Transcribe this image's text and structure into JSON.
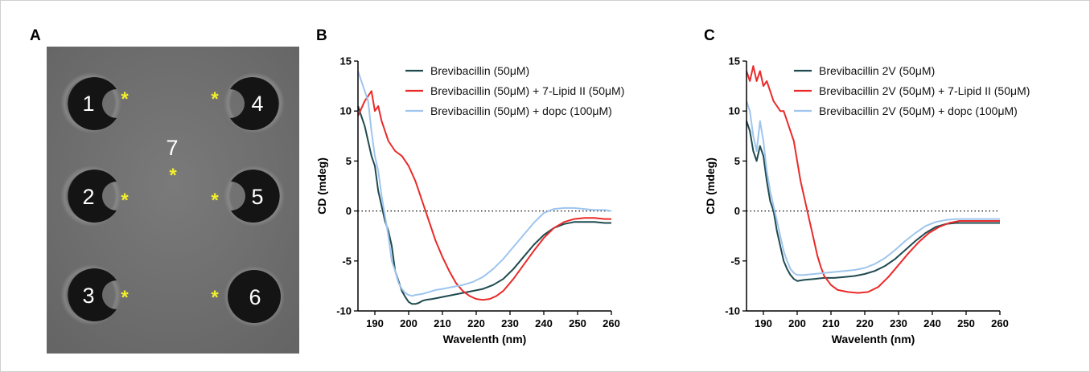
{
  "panels": {
    "a": {
      "label": "A"
    },
    "b": {
      "label": "B"
    },
    "c": {
      "label": "C"
    }
  },
  "plate": {
    "wells": [
      {
        "label": "1",
        "shape": "notch-right"
      },
      {
        "label": "2",
        "shape": "notch-right"
      },
      {
        "label": "3",
        "shape": "notch-right"
      },
      {
        "label": "4",
        "shape": "notch-left"
      },
      {
        "label": "5",
        "shape": "notch-left"
      },
      {
        "label": "6",
        "shape": "round"
      }
    ],
    "center_label": "7",
    "marker": "*",
    "colors": {
      "background": "#6f6f6f",
      "well": "#141414",
      "marker": "#f2ef2a",
      "text": "#ffffff"
    }
  },
  "chart_data": [
    {
      "panel": "B",
      "type": "line",
      "xlabel": "Wavelenth (nm)",
      "ylabel": "CD (mdeg)",
      "xlim": [
        185,
        260
      ],
      "ylim": [
        -10,
        15
      ],
      "xticks": [
        190,
        200,
        210,
        220,
        230,
        240,
        250,
        260
      ],
      "yticks": [
        -10,
        -5,
        0,
        5,
        10,
        15
      ],
      "zero_line": "dotted",
      "legend_position": "top-right",
      "series": [
        {
          "name": "Brevibacillin (50μM)",
          "color": "#1f4a4f",
          "x": [
            185,
            187,
            189,
            190,
            191,
            192,
            193,
            194,
            195,
            196,
            197,
            198,
            199,
            200,
            201,
            202,
            203,
            204,
            205,
            207,
            210,
            213,
            216,
            219,
            222,
            225,
            228,
            231,
            234,
            237,
            240,
            243,
            246,
            249,
            252,
            255,
            258,
            260
          ],
          "y": [
            10.5,
            8.5,
            5.5,
            4.5,
            2,
            0.5,
            -1,
            -2,
            -3.5,
            -6,
            -7,
            -8,
            -8.6,
            -9.1,
            -9.3,
            -9.3,
            -9.2,
            -9.0,
            -8.9,
            -8.8,
            -8.6,
            -8.4,
            -8.2,
            -8.0,
            -7.8,
            -7.4,
            -6.8,
            -5.8,
            -4.6,
            -3.4,
            -2.4,
            -1.7,
            -1.3,
            -1.1,
            -1.1,
            -1.1,
            -1.2,
            -1.2
          ]
        },
        {
          "name": "Brevibacillin (50μM) + 7-Lipid II (50μM)",
          "color": "#ea2a2a",
          "x": [
            185,
            187,
            189,
            190,
            191,
            192,
            194,
            196,
            198,
            200,
            202,
            203,
            204,
            205,
            206,
            208,
            210,
            212,
            214,
            216,
            218,
            220,
            222,
            224,
            226,
            228,
            231,
            234,
            237,
            240,
            243,
            246,
            249,
            252,
            255,
            258,
            260
          ],
          "y": [
            9.5,
            11,
            12,
            10,
            10.5,
            9,
            7,
            6,
            5.5,
            4.5,
            3,
            2,
            1,
            0,
            -1,
            -3,
            -4.6,
            -6,
            -7.2,
            -8.0,
            -8.5,
            -8.8,
            -8.9,
            -8.8,
            -8.5,
            -8.0,
            -6.8,
            -5.4,
            -4.0,
            -2.7,
            -1.7,
            -1.1,
            -0.8,
            -0.7,
            -0.7,
            -0.8,
            -0.8
          ]
        },
        {
          "name": "Brevibacillin (50μM) + dopc (100μM)",
          "color": "#9ec5ee",
          "x": [
            185,
            187,
            188,
            189,
            190,
            191,
            192,
            193,
            194,
            195,
            196,
            197,
            198,
            199,
            200,
            201,
            202,
            204,
            206,
            208,
            210,
            213,
            216,
            219,
            222,
            225,
            228,
            231,
            234,
            237,
            240,
            243,
            246,
            249,
            252,
            255,
            258,
            260
          ],
          "y": [
            14,
            12,
            11,
            8,
            5.5,
            4,
            1.5,
            -0.5,
            -2.5,
            -5,
            -6,
            -7.2,
            -7.8,
            -8.2,
            -8.4,
            -8.5,
            -8.4,
            -8.3,
            -8.1,
            -7.9,
            -7.8,
            -7.6,
            -7.4,
            -7.1,
            -6.6,
            -5.8,
            -4.8,
            -3.6,
            -2.4,
            -1.2,
            -0.2,
            0.2,
            0.3,
            0.3,
            0.2,
            0.1,
            0.1,
            0.0
          ]
        }
      ]
    },
    {
      "panel": "C",
      "type": "line",
      "xlabel": "Wavelenth (nm)",
      "ylabel": "CD (mdeg)",
      "xlim": [
        185,
        260
      ],
      "ylim": [
        -10,
        15
      ],
      "xticks": [
        190,
        200,
        210,
        220,
        230,
        240,
        250,
        260
      ],
      "yticks": [
        -10,
        -5,
        0,
        5,
        10,
        15
      ],
      "zero_line": "dotted",
      "legend_position": "top-right",
      "series": [
        {
          "name": "Brevibacillin 2V (50μM)",
          "color": "#1f4a4f",
          "x": [
            185,
            186,
            187,
            188,
            189,
            190,
            191,
            192,
            193,
            194,
            195,
            196,
            197,
            198,
            199,
            200,
            202,
            205,
            208,
            211,
            214,
            217,
            220,
            223,
            226,
            229,
            232,
            235,
            238,
            241,
            244,
            247,
            250,
            253,
            256,
            260
          ],
          "y": [
            9,
            8,
            6,
            5,
            6.5,
            5.5,
            3,
            1,
            0,
            -2,
            -3.5,
            -5,
            -5.8,
            -6.4,
            -6.8,
            -7.0,
            -6.9,
            -6.8,
            -6.7,
            -6.7,
            -6.6,
            -6.5,
            -6.3,
            -6.0,
            -5.5,
            -4.8,
            -3.9,
            -3.0,
            -2.2,
            -1.6,
            -1.3,
            -1.2,
            -1.2,
            -1.2,
            -1.2,
            -1.2
          ]
        },
        {
          "name": "Brevibacillin 2V (50μM) + 7-Lipid II (50μM)",
          "color": "#ea2a2a",
          "x": [
            185,
            186,
            187,
            188,
            189,
            190,
            191,
            192,
            193,
            194,
            195,
            196,
            197,
            198,
            199,
            200,
            201,
            202,
            203,
            204,
            205,
            206,
            207,
            208,
            210,
            212,
            215,
            218,
            221,
            224,
            227,
            230,
            233,
            236,
            239,
            242,
            245,
            248,
            251,
            254,
            257,
            260
          ],
          "y": [
            14,
            13,
            14.5,
            13,
            14,
            12.5,
            13,
            12,
            11,
            10.5,
            10,
            10,
            9,
            8,
            7,
            5,
            3,
            1.5,
            0,
            -1.5,
            -3,
            -4.5,
            -5.6,
            -6.5,
            -7.4,
            -7.9,
            -8.1,
            -8.2,
            -8.1,
            -7.6,
            -6.6,
            -5.4,
            -4.2,
            -3.1,
            -2.2,
            -1.6,
            -1.2,
            -1.0,
            -1.0,
            -1.0,
            -1.0,
            -1.0
          ]
        },
        {
          "name": "Brevibacillin 2V (50μM) + dopc (100μM)",
          "color": "#9ec5ee",
          "x": [
            185,
            186,
            187,
            188,
            189,
            190,
            191,
            192,
            193,
            194,
            195,
            196,
            197,
            198,
            199,
            200,
            202,
            205,
            208,
            211,
            214,
            217,
            220,
            223,
            226,
            229,
            232,
            235,
            238,
            241,
            244,
            247,
            250,
            253,
            256,
            260
          ],
          "y": [
            11,
            10,
            7.5,
            6,
            9,
            7,
            4,
            2,
            0.5,
            -1,
            -2.5,
            -4,
            -5,
            -5.8,
            -6.2,
            -6.4,
            -6.4,
            -6.3,
            -6.2,
            -6.1,
            -6.0,
            -5.9,
            -5.7,
            -5.3,
            -4.7,
            -3.9,
            -3.0,
            -2.2,
            -1.5,
            -1.1,
            -0.9,
            -0.8,
            -0.8,
            -0.8,
            -0.8,
            -0.8
          ]
        }
      ]
    }
  ]
}
